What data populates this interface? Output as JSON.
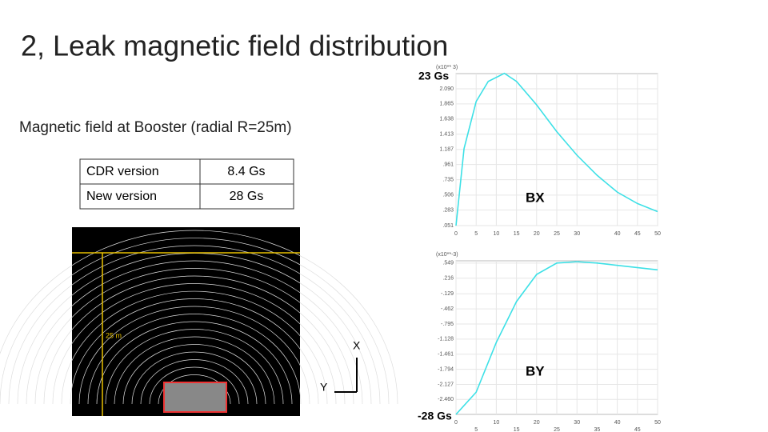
{
  "header": {
    "title": "2, Leak magnetic field distribution"
  },
  "subtitle": "Magnetic field at Booster (radial R=25m)",
  "table": {
    "rows": [
      [
        "CDR version",
        "8.4 Gs"
      ],
      [
        "New version",
        "28 Gs"
      ]
    ]
  },
  "annotations": {
    "top": "23 Gs",
    "bottom": "-28 Gs",
    "scale": "25 m",
    "axis_x": "X",
    "axis_y": "Y"
  },
  "plots": [
    {
      "label": "BX",
      "unit": "(x10** 3)",
      "xlim": [
        0,
        50
      ],
      "ylim": [
        0.051,
        2.316
      ],
      "xticks": [
        0,
        5,
        10,
        15,
        20,
        25,
        30,
        40,
        45,
        50
      ],
      "yticks": [
        {
          "value": 0.051,
          "label": ".051"
        },
        {
          "value": 0.283,
          "label": ".283"
        },
        {
          "value": 0.506,
          "label": ".506"
        },
        {
          "value": 0.735,
          "label": ".735"
        },
        {
          "value": 0.961,
          "label": ".961"
        },
        {
          "value": 1.187,
          "label": "1.187"
        },
        {
          "value": 1.413,
          "label": "1.413"
        },
        {
          "value": 1.638,
          "label": "1.638"
        },
        {
          "value": 1.865,
          "label": "1.865"
        },
        {
          "value": 2.09,
          "label": "2.090"
        }
      ],
      "x": [
        0,
        2,
        5,
        8,
        12,
        15,
        20,
        25,
        30,
        35,
        40,
        45,
        50
      ],
      "values": [
        0.05,
        1.2,
        1.9,
        2.2,
        2.32,
        2.2,
        1.85,
        1.45,
        1.1,
        0.8,
        0.55,
        0.38,
        0.26
      ]
    },
    {
      "label": "BY",
      "unit": "(x10**-3)",
      "xlim": [
        0,
        50
      ],
      "ylim": [
        -2.79,
        0.6
      ],
      "xticks": [
        0,
        5,
        10,
        15,
        20,
        25,
        30,
        35,
        40,
        45,
        50
      ],
      "yticks": [
        {
          "value": -2.46,
          "label": "-2.460"
        },
        {
          "value": -2.127,
          "label": "-2.127"
        },
        {
          "value": -1.794,
          "label": "-1.794"
        },
        {
          "value": -1.461,
          "label": "-1.461"
        },
        {
          "value": -1.128,
          "label": "-1.128"
        },
        {
          "value": -0.795,
          "label": "-.795"
        },
        {
          "value": -0.462,
          "label": "-.462"
        },
        {
          "value": -0.129,
          "label": "-.129"
        },
        {
          "value": 0.216,
          "label": ".216"
        },
        {
          "value": 0.549,
          "label": ".549"
        }
      ],
      "x": [
        0,
        5,
        10,
        15,
        20,
        25,
        30,
        35,
        40,
        50
      ],
      "values": [
        -2.79,
        -2.3,
        -1.2,
        -0.3,
        0.3,
        0.55,
        0.58,
        0.55,
        0.5,
        0.4
      ]
    }
  ]
}
